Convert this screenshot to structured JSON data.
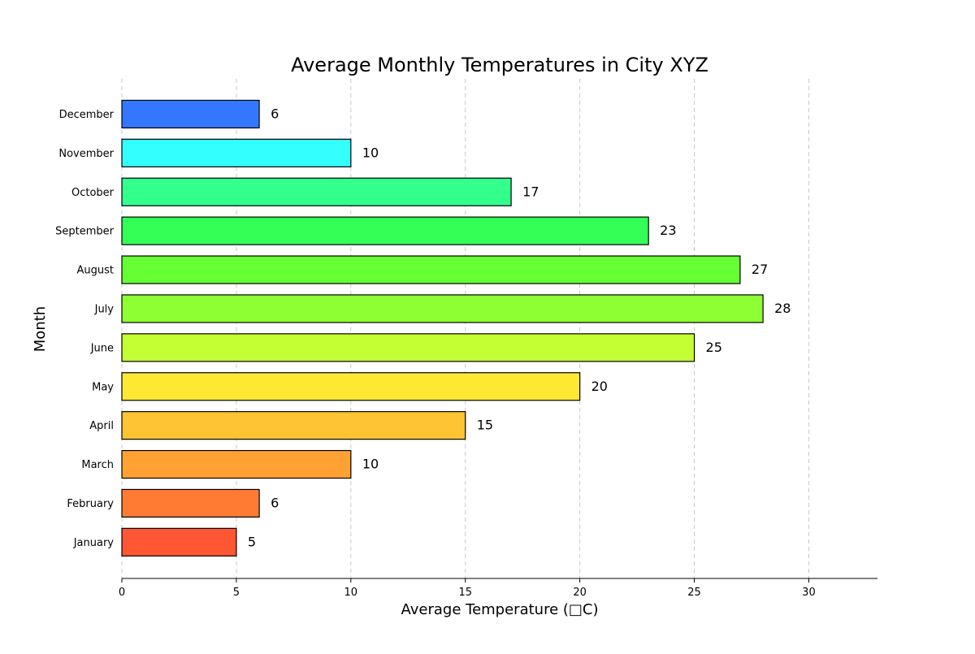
{
  "chart_data": {
    "type": "bar",
    "orientation": "horizontal",
    "title": "Average Monthly Temperatures in City XYZ",
    "xlabel": "Average Temperature (□C)",
    "ylabel": "Month",
    "xlim": [
      0,
      33
    ],
    "x_ticks": [
      0,
      5,
      10,
      15,
      20,
      25,
      30
    ],
    "grid": "x-axis dashed",
    "categories": [
      "January",
      "February",
      "March",
      "April",
      "May",
      "June",
      "July",
      "August",
      "September",
      "October",
      "November",
      "December"
    ],
    "values": [
      5,
      6,
      10,
      15,
      20,
      25,
      28,
      27,
      23,
      17,
      10,
      6
    ],
    "value_labels": [
      "5",
      "6",
      "10",
      "15",
      "20",
      "25",
      "28",
      "27",
      "23",
      "17",
      "10",
      "6"
    ],
    "colors": [
      "#ff5733",
      "#ff7b33",
      "#ffa133",
      "#ffc433",
      "#ffe833",
      "#c4ff33",
      "#8dff33",
      "#66ff33",
      "#33ff57",
      "#33ff8d",
      "#33ffff",
      "#3377ff"
    ]
  }
}
